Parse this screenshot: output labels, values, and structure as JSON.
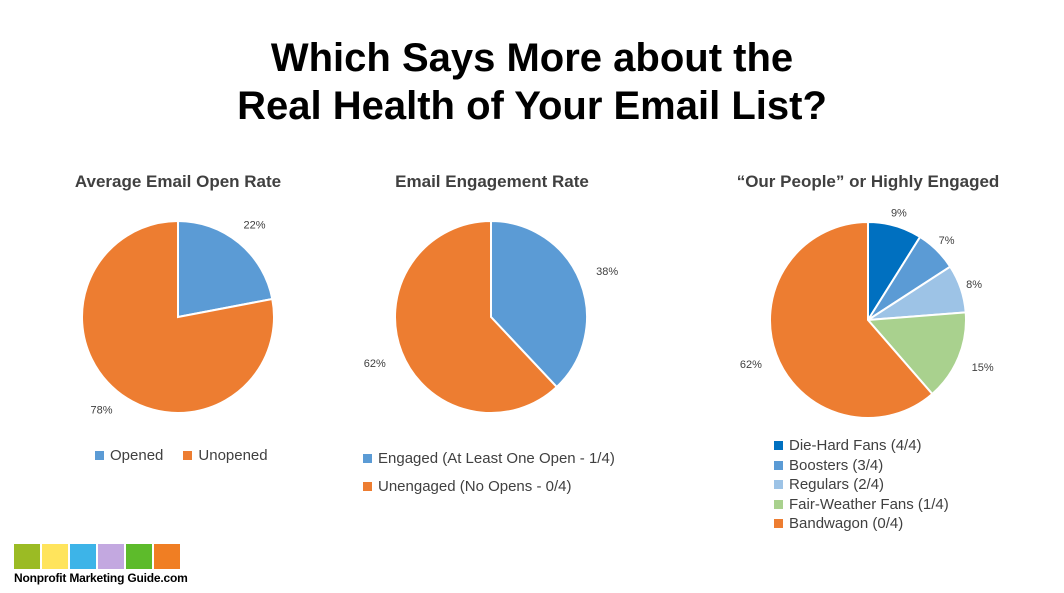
{
  "title": {
    "line1": "Which Says More about the",
    "line2": "Real Health of Your Email List?"
  },
  "chart_data": [
    {
      "type": "pie",
      "title": "Average Email Open Rate",
      "slices": [
        {
          "label": "Opened",
          "value": 22,
          "display": "22%",
          "color": "#5B9BD5"
        },
        {
          "label": "Unopened",
          "value": 78,
          "display": "78%",
          "color": "#ED7D31"
        }
      ],
      "legend_position": "bottom-row"
    },
    {
      "type": "pie",
      "title": "Email Engagement Rate",
      "slices": [
        {
          "label": "Engaged (At Least One Open - 1/4)",
          "value": 38,
          "display": "38%",
          "color": "#5B9BD5"
        },
        {
          "label": "Unengaged (No Opens - 0/4)",
          "value": 62,
          "display": "62%",
          "color": "#ED7D31"
        }
      ],
      "legend_position": "bottom-list"
    },
    {
      "type": "pie",
      "title": "“Our People” or Highly Engaged",
      "slices": [
        {
          "label": "Die-Hard Fans (4/4)",
          "value": 9,
          "display": "9%",
          "color": "#0070C0"
        },
        {
          "label": "Boosters (3/4)",
          "value": 7,
          "display": "7%",
          "color": "#5B9BD5"
        },
        {
          "label": "Regulars (2/4)",
          "value": 8,
          "display": "8%",
          "color": "#9DC3E6"
        },
        {
          "label": "Fair-Weather Fans (1/4)",
          "value": 15,
          "display": "15%",
          "color": "#A9D18E"
        },
        {
          "label": "Bandwagon (0/4)",
          "value": 62,
          "display": "62%",
          "color": "#ED7D31"
        }
      ],
      "legend_position": "bottom-list"
    }
  ],
  "logo": {
    "text": "Nonprofit Marketing Guide.com",
    "block_colors": [
      "#9BBB24",
      "#FFE45C",
      "#3DB4E8",
      "#C3A8E0",
      "#5DBB2B",
      "#F07E23"
    ]
  }
}
